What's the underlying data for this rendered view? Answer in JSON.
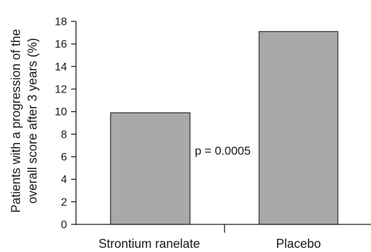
{
  "chart_data": {
    "type": "bar",
    "categories": [
      "Strontium ranelate",
      "Placebo"
    ],
    "values": [
      9.9,
      17.1
    ],
    "ylabel_lines": [
      "Patients with a progression of the",
      "overall score after 3 years (%)"
    ],
    "xlabel": "",
    "ylim": [
      0,
      18
    ],
    "yticks": [
      0,
      2,
      4,
      6,
      8,
      10,
      12,
      14,
      16,
      18
    ],
    "annotation": "p = 0.0005",
    "grid": false,
    "colors": {
      "bar_fill": "#a9a9ab",
      "bar_stroke": "#1a1a1a",
      "axis": "#1a1a1a"
    }
  }
}
